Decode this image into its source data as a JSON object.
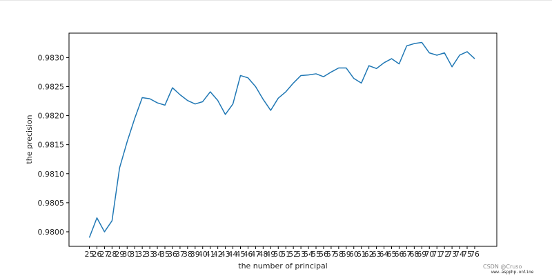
{
  "chart_data": {
    "type": "line",
    "title": "",
    "xlabel": "the number of principal",
    "ylabel": "the precision",
    "categories": [
      "25",
      "26",
      "27",
      "28",
      "29",
      "30",
      "31",
      "32",
      "33",
      "34",
      "35",
      "36",
      "37",
      "38",
      "39",
      "40",
      "41",
      "42",
      "43",
      "44",
      "45",
      "46",
      "47",
      "48",
      "49",
      "50",
      "51",
      "52",
      "53",
      "54",
      "55",
      "56",
      "57",
      "58",
      "59",
      "60",
      "61",
      "62",
      "63",
      "64",
      "65",
      "66",
      "67",
      "68",
      "69",
      "70",
      "71",
      "72",
      "73",
      "74",
      "75",
      "76"
    ],
    "series": [
      {
        "values": [
          0.9799,
          0.98024,
          0.98,
          0.98019,
          0.9811,
          0.98155,
          0.98195,
          0.98231,
          0.98229,
          0.98222,
          0.98218,
          0.98248,
          0.98236,
          0.98226,
          0.9822,
          0.98224,
          0.98241,
          0.98226,
          0.98202,
          0.9822,
          0.98269,
          0.98265,
          0.9825,
          0.98228,
          0.98209,
          0.9823,
          0.98241,
          0.98256,
          0.98269,
          0.9827,
          0.98272,
          0.98267,
          0.98275,
          0.98282,
          0.98282,
          0.98264,
          0.98256,
          0.98286,
          0.98281,
          0.98291,
          0.98298,
          0.98289,
          0.9832,
          0.98324,
          0.98326,
          0.98308,
          0.98304,
          0.98308,
          0.98284,
          0.98304,
          0.9831,
          0.98298
        ],
        "color": "#1f77b4"
      }
    ],
    "yticks": [
      "0.9800",
      "0.9805",
      "0.9810",
      "0.9815",
      "0.9820",
      "0.9825",
      "0.9830"
    ],
    "ylim": [
      0.97975,
      0.98342
    ],
    "grid": false,
    "legend": "none"
  },
  "watermark": {
    "text": "CSDN @Cruso",
    "site": "www.aspphp.online"
  }
}
